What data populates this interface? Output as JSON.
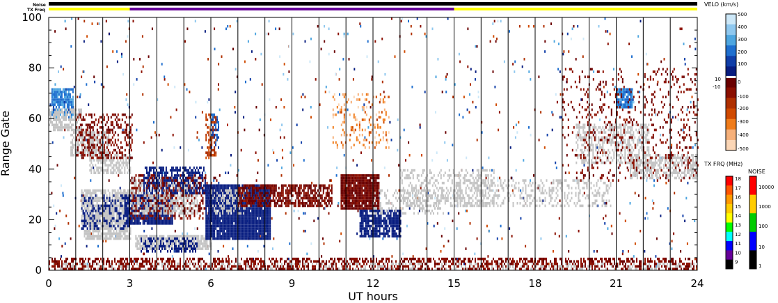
{
  "chart_data": {
    "type": "heatmap",
    "xlabel": "UT hours",
    "ylabel": "Range Gate",
    "xlim": [
      0,
      24
    ],
    "ylim": [
      0,
      100
    ],
    "x_ticks": [
      "0",
      "3",
      "6",
      "9",
      "12",
      "15",
      "18",
      "21",
      "24"
    ],
    "x_tick_values": [
      0,
      3,
      6,
      9,
      12,
      15,
      18,
      21,
      24
    ],
    "y_ticks": [
      "0",
      "20",
      "40",
      "60",
      "80",
      "100"
    ],
    "y_tick_values": [
      0,
      20,
      40,
      60,
      80,
      100
    ],
    "scan_boundary_hours": [
      1,
      2,
      3,
      4,
      5,
      6,
      7,
      8,
      9,
      10,
      11,
      12,
      13,
      14,
      15,
      16,
      17,
      18,
      19,
      20,
      21,
      22,
      23
    ],
    "status_bars": [
      {
        "label": "Noise",
        "segments": [
          {
            "start": 0,
            "end": 24,
            "color": "#000000"
          }
        ]
      },
      {
        "label": "TX Freq",
        "segments": [
          {
            "start": 0,
            "end": 3,
            "color": "#ffff00"
          },
          {
            "start": 3,
            "end": 15,
            "color": "#660099"
          },
          {
            "start": 15,
            "end": 24,
            "color": "#ffff00"
          }
        ]
      }
    ],
    "velocity_colorbar": {
      "title": "VELO (km/s)",
      "tick_labels": [
        "500",
        "400",
        "300",
        "200",
        "100",
        "0",
        "10",
        "-10",
        "-100",
        "-200",
        "-300",
        "-400",
        "-500"
      ],
      "colors": [
        "#cde8f8",
        "#8fc8ef",
        "#4ea6e0",
        "#1f6fcf",
        "#103ea8",
        "#081d80",
        "#6a0000",
        "#8b0f00",
        "#b03000",
        "#d04a00",
        "#f07c1a",
        "#f6b07a",
        "#fbd6b6"
      ]
    },
    "txfreq_colorbar": {
      "title": "TX FRQ (MHz)",
      "tick_labels": [
        "18",
        "17",
        "16",
        "15",
        "14",
        "13",
        "12",
        "11",
        "10",
        "9"
      ],
      "colors": [
        "#ff0000",
        "#ff5500",
        "#ff9900",
        "#ffcc00",
        "#ffff00",
        "#00ff00",
        "#00ffff",
        "#0000ff",
        "#660099",
        "#000000"
      ]
    },
    "noise_colorbar": {
      "title": "NOISE",
      "tick_labels": [
        "10000",
        "1000",
        "100",
        "10",
        "1"
      ],
      "colors": [
        "#ff0000",
        "#ffcc00",
        "#00cc00",
        "#0000ff",
        "#000000"
      ]
    },
    "ground_scatter_color": "#c4c4c4",
    "regions": [
      {
        "kind": "positive",
        "value": 250,
        "t0": 0.1,
        "t1": 0.9,
        "g0": 60,
        "g1": 72,
        "density": 0.8
      },
      {
        "kind": "ground",
        "t0": 0.0,
        "t1": 1.2,
        "g0": 55,
        "g1": 64,
        "density": 0.7
      },
      {
        "kind": "ground",
        "t0": 0.8,
        "t1": 2.2,
        "g0": 45,
        "g1": 55,
        "density": 0.7
      },
      {
        "kind": "ground",
        "t0": 1.5,
        "t1": 3.0,
        "g0": 38,
        "g1": 46,
        "density": 0.6
      },
      {
        "kind": "negative",
        "value": -90,
        "t0": 1.0,
        "t1": 3.1,
        "g0": 44,
        "g1": 62,
        "density": 0.35
      },
      {
        "kind": "ground",
        "t0": 1.2,
        "t1": 3.2,
        "g0": 18,
        "g1": 32,
        "density": 0.8
      },
      {
        "kind": "ground",
        "t0": 1.3,
        "t1": 3.0,
        "g0": 12,
        "g1": 20,
        "density": 0.7
      },
      {
        "kind": "positive",
        "value": 60,
        "t0": 1.2,
        "t1": 3.0,
        "g0": 16,
        "g1": 30,
        "density": 0.3
      },
      {
        "kind": "positive",
        "value": 40,
        "t0": 2.8,
        "t1": 4.6,
        "g0": 18,
        "g1": 30,
        "density": 0.9
      },
      {
        "kind": "ground",
        "t0": 3.0,
        "t1": 5.5,
        "g0": 22,
        "g1": 37,
        "density": 0.6
      },
      {
        "kind": "positive",
        "value": 40,
        "t0": 3.5,
        "t1": 5.8,
        "g0": 30,
        "g1": 41,
        "density": 0.6
      },
      {
        "kind": "ground",
        "t0": 3.2,
        "t1": 6.0,
        "g0": 8,
        "g1": 14,
        "density": 0.85
      },
      {
        "kind": "positive",
        "value": 40,
        "t0": 3.4,
        "t1": 5.5,
        "g0": 7,
        "g1": 13,
        "density": 0.45
      },
      {
        "kind": "negative",
        "value": -90,
        "t0": 3.0,
        "t1": 6.2,
        "g0": 20,
        "g1": 38,
        "density": 0.25
      },
      {
        "kind": "positive",
        "value": 30,
        "t0": 5.8,
        "t1": 8.2,
        "g0": 12,
        "g1": 34,
        "density": 0.95
      },
      {
        "kind": "ground",
        "t0": 6.0,
        "t1": 7.4,
        "g0": 22,
        "g1": 32,
        "density": 0.35
      },
      {
        "kind": "positive",
        "value": 180,
        "t0": 6.0,
        "t1": 6.3,
        "g0": 48,
        "g1": 62,
        "density": 0.5
      },
      {
        "kind": "negative",
        "value": -220,
        "t0": 5.8,
        "t1": 6.2,
        "g0": 44,
        "g1": 62,
        "density": 0.4
      },
      {
        "kind": "negative",
        "value": -80,
        "t0": 7.0,
        "t1": 10.5,
        "g0": 25,
        "g1": 34,
        "density": 0.7
      },
      {
        "kind": "negative",
        "value": -70,
        "t0": 10.8,
        "t1": 12.2,
        "g0": 24,
        "g1": 38,
        "density": 0.95
      },
      {
        "kind": "positive",
        "value": 50,
        "t0": 11.5,
        "t1": 13.0,
        "g0": 13,
        "g1": 24,
        "density": 0.8
      },
      {
        "kind": "ground",
        "t0": 12.0,
        "t1": 14.6,
        "g0": 22,
        "g1": 32,
        "density": 0.25
      },
      {
        "kind": "negative",
        "value": -400,
        "t0": 10.5,
        "t1": 12.6,
        "g0": 48,
        "g1": 70,
        "density": 0.18
      },
      {
        "kind": "ground",
        "t0": 13.0,
        "t1": 16.5,
        "g0": 25,
        "g1": 40,
        "density": 0.35
      },
      {
        "kind": "ground",
        "t0": 15.0,
        "t1": 20.8,
        "g0": 25,
        "g1": 36,
        "density": 0.3
      },
      {
        "kind": "positive",
        "value": 250,
        "t0": 21.0,
        "t1": 21.6,
        "g0": 64,
        "g1": 72,
        "density": 0.95
      },
      {
        "kind": "ground",
        "t0": 19.5,
        "t1": 22.2,
        "g0": 42,
        "g1": 58,
        "density": 0.45
      },
      {
        "kind": "ground",
        "t0": 21.5,
        "t1": 24.0,
        "g0": 36,
        "g1": 46,
        "density": 0.55
      },
      {
        "kind": "negative",
        "value": -90,
        "t0": 19.0,
        "t1": 24.0,
        "g0": 35,
        "g1": 80,
        "density": 0.12
      },
      {
        "kind": "negative",
        "value": -90,
        "t0": 0.0,
        "t1": 24.0,
        "g0": 0,
        "g1": 5,
        "density": 0.5
      },
      {
        "kind": "ground",
        "t0": 0.0,
        "t1": 24.0,
        "g0": 0,
        "g1": 3,
        "density": 0.2
      }
    ]
  }
}
